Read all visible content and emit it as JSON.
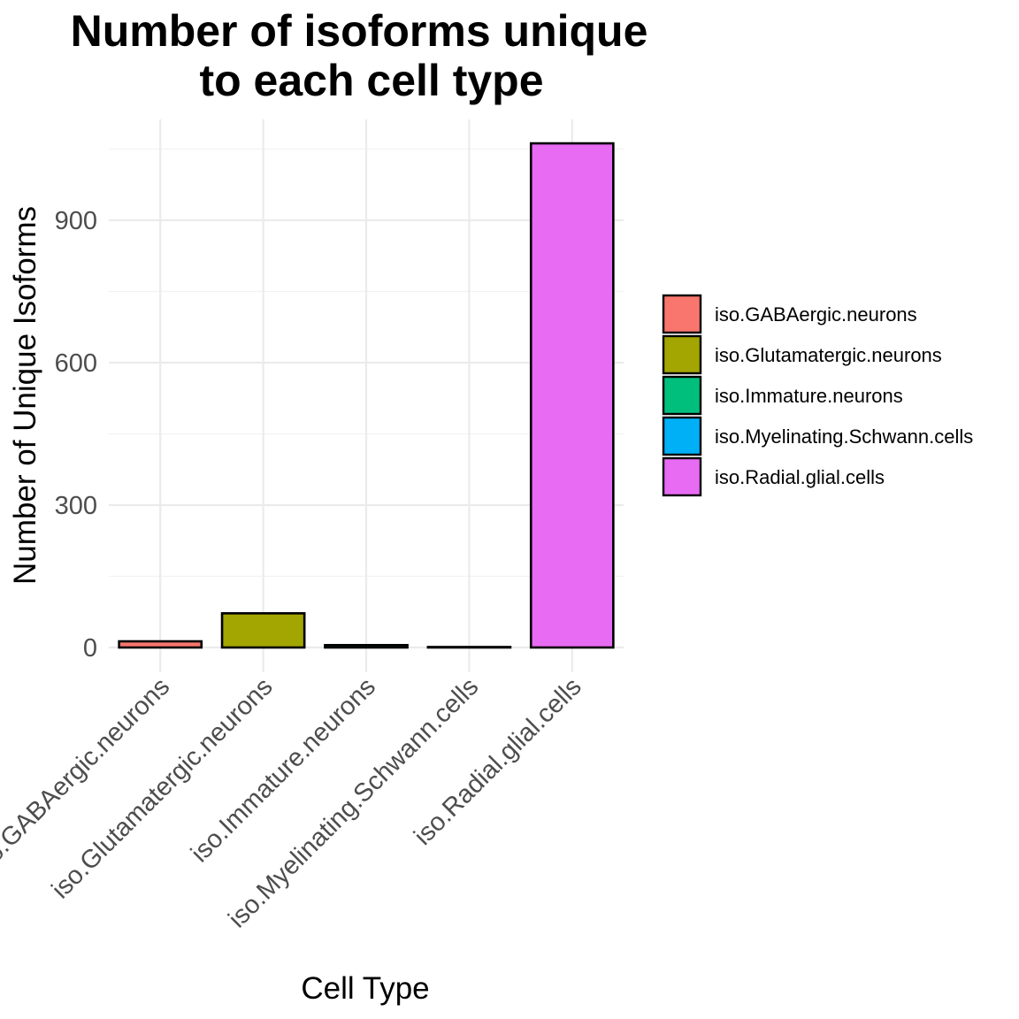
{
  "chart_data": {
    "type": "bar",
    "title": [
      "Number of isoforms unique",
      "to each cell type"
    ],
    "xlabel": "Cell Type",
    "ylabel": "Number of Unique Isoforms",
    "categories": [
      "iso.GABAergic.neurons",
      "iso.Glutamatergic.neurons",
      "iso.Immature.neurons",
      "iso.Myelinating.Schwann.cells",
      "iso.Radial.glial.cells"
    ],
    "values": [
      13,
      72,
      5,
      1,
      1062
    ],
    "colors": [
      "#F8766D",
      "#A3A500",
      "#00BF7D",
      "#00B0F6",
      "#E76BF3"
    ],
    "yticks": [
      0,
      300,
      600,
      900
    ],
    "ylim": [
      -52,
      1115
    ],
    "grid": true,
    "legend": {
      "position": "right",
      "entries": [
        "iso.GABAergic.neurons",
        "iso.Glutamatergic.neurons",
        "iso.Immature.neurons",
        "iso.Myelinating.Schwann.cells",
        "iso.Radial.glial.cells"
      ]
    }
  }
}
